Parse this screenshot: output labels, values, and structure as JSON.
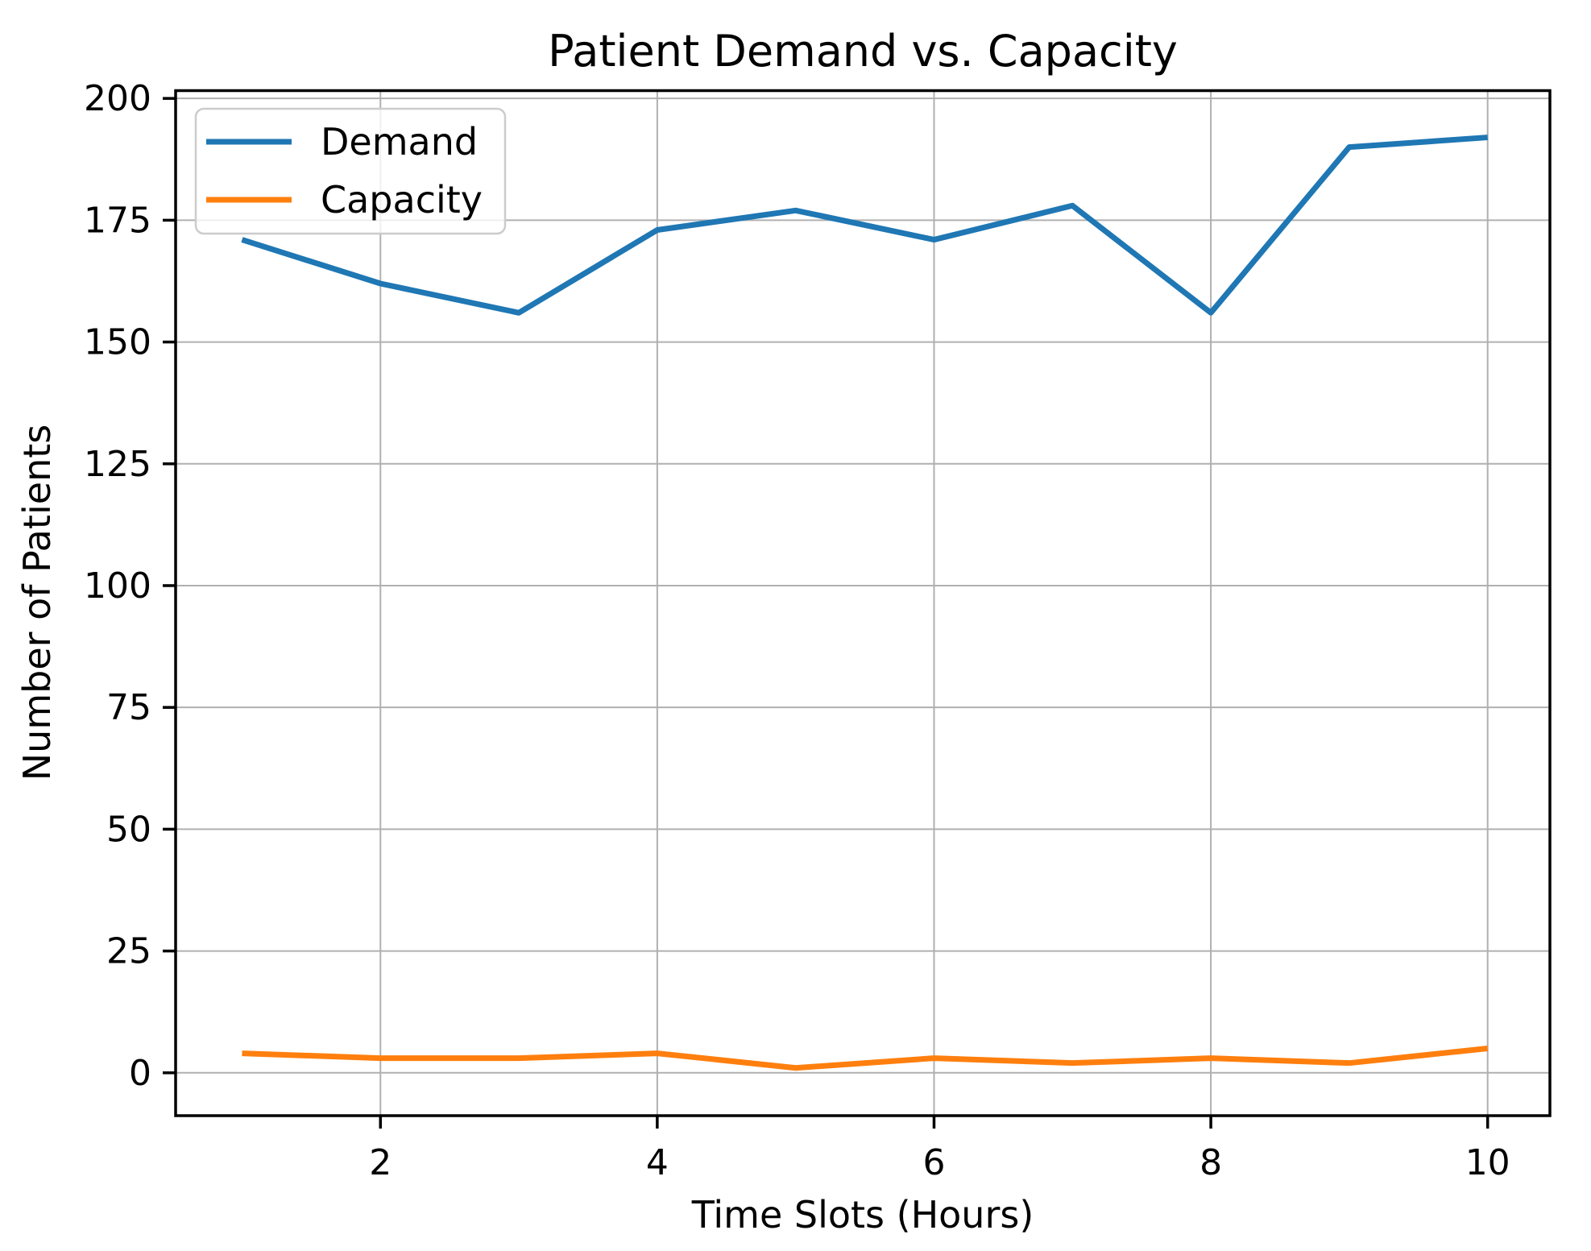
{
  "figure": {
    "background": "#ffffff"
  },
  "chart_data": {
    "type": "line",
    "title": "Patient Demand vs. Capacity",
    "xlabel": "Time Slots (Hours)",
    "ylabel": "Number of Patients",
    "x": [
      1,
      2,
      3,
      4,
      5,
      6,
      7,
      8,
      9,
      10
    ],
    "series": [
      {
        "name": "Demand",
        "color": "#1f77b4",
        "values": [
          171,
          162,
          156,
          173,
          177,
          171,
          178,
          156,
          190,
          192
        ]
      },
      {
        "name": "Capacity",
        "color": "#ff7f0e",
        "values": [
          4,
          3,
          3,
          4,
          1,
          3,
          2,
          3,
          2,
          5
        ]
      }
    ],
    "x_ticks": [
      "2",
      "4",
      "6",
      "8",
      "10"
    ],
    "x_tick_values": [
      2,
      4,
      6,
      8,
      10
    ],
    "y_ticks": [
      "0",
      "25",
      "50",
      "75",
      "100",
      "125",
      "150",
      "175",
      "200"
    ],
    "y_tick_values": [
      0,
      25,
      50,
      75,
      100,
      125,
      150,
      175,
      200
    ],
    "xlim": [
      0.52,
      10.45
    ],
    "ylim": [
      -8.8,
      201.6
    ],
    "grid": true,
    "grid_color": "#b0b0b0",
    "axis_color": "#000000",
    "legend_position": "upper left"
  }
}
